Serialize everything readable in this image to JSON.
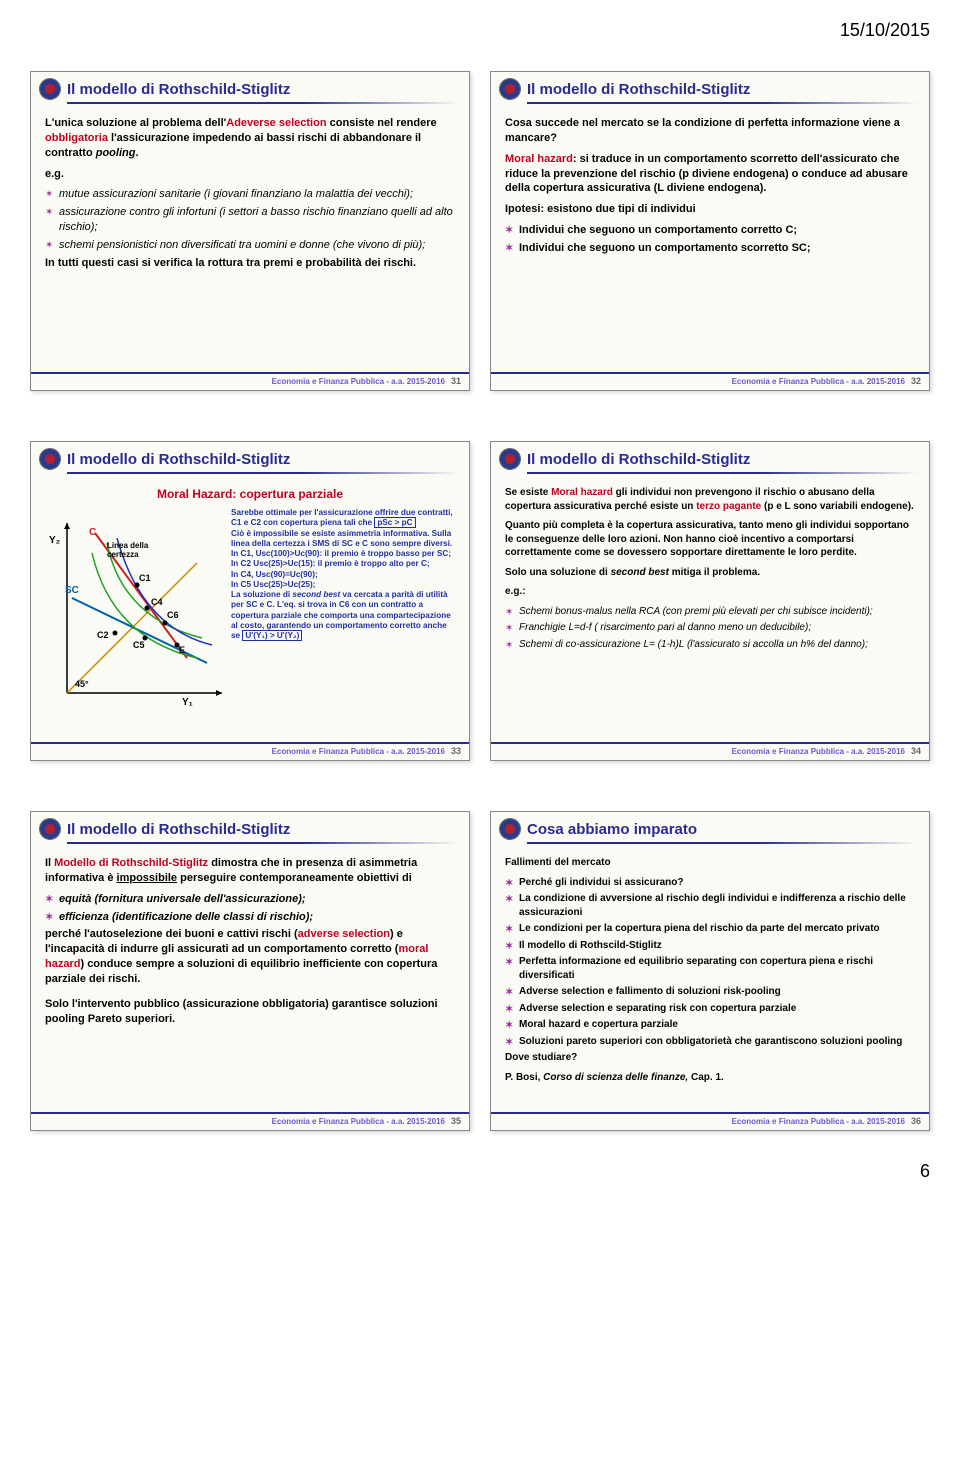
{
  "date": "15/10/2015",
  "page_number": "6",
  "footer_text": "Economia e Finanza Pubblica - a.a. 2015-2016",
  "slides": {
    "s31": {
      "title": "Il modello di Rothschild-Stiglitz",
      "num": "31",
      "intro": "L'unica soluzione al problema dell'",
      "adverse": "Adeverse selection",
      "intro2": " consiste nel rendere ",
      "obblig": "obbligatoria",
      "intro3": " l'assicurazione impedendo ai bassi rischi di abbandonare il contratto ",
      "pooling": "pooling",
      "eg": "e.g.",
      "b1": "mutue assicurazioni sanitarie (i giovani finanziano la malattia dei vecchi);",
      "b2": "assicurazione contro gli infortuni (i settori a basso rischio finanziano quelli ad alto rischio);",
      "b3": "schemi pensionistici non diversificati tra uomini e donne (che vivono di più);",
      "closing": "In tutti questi casi si verifica la rottura tra premi e probabilità dei rischi."
    },
    "s32": {
      "title": "Il modello di Rothschild-Stiglitz",
      "num": "32",
      "q": "Cosa succede nel mercato se la condizione di perfetta informazione viene a mancare?",
      "mh": "Moral hazard",
      "mh_text": ": si traduce in un comportamento scorretto dell'assicurato che riduce la prevenzione del rischio (p diviene endogena) o conduce ad abusare della copertura assicurativa (L diviene endogena).",
      "ip": "Ipotesi: esistono due tipi di individui",
      "b1": "Individui che seguono un comportamento corretto C;",
      "b2": "Individui che seguono un comportamento scorretto SC;"
    },
    "s33": {
      "title": "Il modello di Rothschild-Stiglitz",
      "num": "33",
      "subhead": "Moral Hazard: copertura parziale",
      "cap1": "Sarebbe ottimale per l'assicurazione offrire due contratti, C1 e C2 con copertura piena tali che ",
      "capbox1": "pSc > pC",
      "cap2": "Ciò è impossibile se esiste asimmetria informativa. Sulla linea della certezza i SMS di SC e C sono sempre diversi.",
      "cap3": "In C1, Usc(100)>Uc(90): il premio è troppo basso per SC;",
      "cap4": "In C2 Usc(25)>Uc(15): il premio è troppo alto per C;",
      "cap5": "In C4, Usc(90)=Uc(90);",
      "cap6": "In C5 Usc(25)>Uc(25);",
      "cap7": "La soluzione di ",
      "cap7b": "second best",
      "cap7c": " va cercata a parità di utilità per SC e C. L'eq. si trova in C6 con un contratto a copertura parziale che comporta una compartecipazione al costo, garantendo un comportamento corretto anche se ",
      "capbox2": "U'(Y₁) > U'(Y₂)",
      "chart": {
        "type": "line",
        "xlim": [
          0,
          180
        ],
        "ylim": [
          0,
          200
        ],
        "axes_color": "#000000",
        "line45_color": "#cc8800",
        "lineC_color": "#cc2020",
        "lineSC_color": "#0060b0",
        "curve_c1_color": "#20a020",
        "curve_sc_color": "#2030c0",
        "label_font": 10,
        "labels": {
          "Y2": "Y₂",
          "Y1": "Y₁",
          "deg45": "45°",
          "C": "C",
          "SC": "SC",
          "C1": "C1",
          "C2": "C2",
          "C4": "C4",
          "C5": "C5",
          "C6": "C6",
          "E": "E",
          "linea": "Linea della certezza"
        }
      }
    },
    "s34": {
      "title": "Il modello di Rothschild-Stiglitz",
      "num": "34",
      "p1a": "Se esiste ",
      "p1b": "Moral hazard",
      "p1c": " gli individui non prevengono il rischio o abusano della copertura assicurativa perché esiste un ",
      "p1d": "terzo pagante",
      "p1e": " (p e L sono variabili endogene).",
      "p2": "Quanto più completa è la copertura assicurativa, tanto meno gli individui sopportano le conseguenze delle loro azioni. Non hanno cioè incentivo a comportarsi correttamente come se dovessero sopportare direttamente le loro perdite.",
      "p3a": "Solo una soluzione di ",
      "p3b": "second best",
      "p3c": " mitiga il problema.",
      "eg": "e.g.:",
      "b1": "Schemi bonus-malus nella RCA (con premi più elevati per chi subisce incidenti);",
      "b2": "Franchigie L=d-f ( risarcimento pari al danno meno un deducibile);",
      "b3": "Schemi di co-assicurazione L= (1-h)L (l'assicurato si accolla un h% del danno);"
    },
    "s35": {
      "title": "Il modello di Rothschild-Stiglitz",
      "num": "35",
      "p1a": "Il ",
      "p1b": "Modello di Rothschild-Stiglitz",
      "p1c": " dimostra che in presenza di asimmetria informativa è ",
      "p1d": "impossibile",
      "p1e": " perseguire contemporaneamente obiettivi di",
      "b1": "equità (fornitura universale dell'assicurazione);",
      "b2": "efficienza (identificazione delle classi di rischio);",
      "p2a": "perché l'autoselezione dei buoni e cattivi rischi (",
      "p2b": "adverse selection",
      "p2c": ") e l'incapacità di indurre gli assicurati ad un comportamento corretto (",
      "p2d": "moral hazard",
      "p2e": ") conduce sempre a soluzioni di equilibrio inefficiente con copertura parziale dei rischi.",
      "p3": "Solo l'intervento pubblico (assicurazione obbligatoria) garantisce soluzioni pooling Pareto superiori."
    },
    "s36": {
      "title": "Cosa abbiamo imparato",
      "num": "36",
      "h1": "Fallimenti del mercato",
      "b1": "Perché gli individui si assicurano?",
      "b2": "La condizione di avversione al rischio degli individui e indifferenza a rischio delle assicurazioni",
      "b3": "Le condizioni per la copertura piena del rischio da parte del mercato privato",
      "b4": "Il modello di Rothscild-Stiglitz",
      "b5": "Perfetta informazione ed equilibrio separating con copertura piena e rischi diversificati",
      "b6": "Adverse selection e fallimento di soluzioni risk-pooling",
      "b7": "Adverse selection e separating risk con copertura parziale",
      "b8": "Moral hazard e copertura parziale",
      "b9": "Soluzioni pareto superiori con obbligatorietà che garantiscono soluzioni pooling",
      "h2": "Dove studiare?",
      "ref": "P. Bosi, Corso di scienza delle finanze, Cap. 1."
    }
  }
}
